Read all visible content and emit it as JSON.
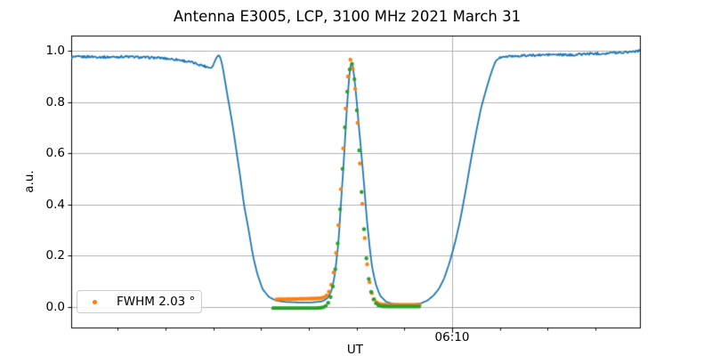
{
  "title": "Antenna E3005, LCP, 3100 MHz 2021 March 31",
  "axes": {
    "x_label": "UT",
    "y_label": "a.u.",
    "x_major_tick_label": "06:10",
    "y_tick_labels": [
      "0.0",
      "0.2",
      "0.4",
      "0.6",
      "0.8",
      "1.0"
    ]
  },
  "legend": {
    "label": "FWHM 2.03 °",
    "marker_color": "#ff7f0e",
    "position": "lower left"
  },
  "colors": {
    "line_blue": "#1f77b4",
    "dots_orange": "#ff7f0e",
    "dots_green": "#2ca02c",
    "grid": "#b0b0b0",
    "spine": "#000000",
    "background": "#ffffff",
    "text": "#000000"
  },
  "chart_data": {
    "type": "line",
    "title": "Antenna E3005, LCP, 3100 MHz 2021 March 31",
    "xlabel": "UT",
    "ylabel": "a.u.",
    "x_axis": {
      "unit": "minutes relative to 06:10 UT",
      "range_min": [
        -7.98,
        3.93
      ],
      "major_tick_labels": [
        "06:10"
      ],
      "major_tick_t": [
        0
      ],
      "minor_tick_interval_min": 1,
      "grid_on_major": true
    },
    "y_axis": {
      "ticks": [
        0.0,
        0.2,
        0.4,
        0.6,
        0.8,
        1.0
      ],
      "range": [
        -0.08,
        1.06
      ],
      "grid": true
    },
    "series": [
      {
        "id": "blue_line",
        "type": "line",
        "color": "#1f77b4",
        "noise_amplitude": 0.0045,
        "points": [
          [
            -7.98,
            0.975
          ],
          [
            -7.6,
            0.977
          ],
          [
            -7.22,
            0.975
          ],
          [
            -6.85,
            0.977
          ],
          [
            -6.48,
            0.974
          ],
          [
            -6.11,
            0.972
          ],
          [
            -5.74,
            0.965
          ],
          [
            -5.46,
            0.955
          ],
          [
            -5.18,
            0.94
          ],
          [
            -5.03,
            0.932
          ],
          [
            -4.94,
            0.972
          ],
          [
            -4.88,
            0.985
          ],
          [
            -4.83,
            0.96
          ],
          [
            -4.77,
            0.9
          ],
          [
            -4.71,
            0.83
          ],
          [
            -4.66,
            0.78
          ],
          [
            -4.58,
            0.69
          ],
          [
            -4.51,
            0.6
          ],
          [
            -4.43,
            0.5
          ],
          [
            -4.36,
            0.4
          ],
          [
            -4.26,
            0.3
          ],
          [
            -4.17,
            0.2
          ],
          [
            -4.08,
            0.13
          ],
          [
            -3.97,
            0.07
          ],
          [
            -3.84,
            0.04
          ],
          [
            -3.69,
            0.025
          ],
          [
            -3.5,
            0.02
          ],
          [
            -3.22,
            0.018
          ],
          [
            -2.94,
            0.018
          ],
          [
            -2.72,
            0.022
          ],
          [
            -2.61,
            0.035
          ],
          [
            -2.53,
            0.06
          ],
          [
            -2.46,
            0.12
          ],
          [
            -2.38,
            0.25
          ],
          [
            -2.33,
            0.4
          ],
          [
            -2.27,
            0.56
          ],
          [
            -2.22,
            0.73
          ],
          [
            -2.16,
            0.89
          ],
          [
            -2.11,
            0.965
          ],
          [
            -2.07,
            0.93
          ],
          [
            -2.01,
            0.83
          ],
          [
            -1.96,
            0.72
          ],
          [
            -1.9,
            0.6
          ],
          [
            -1.84,
            0.47
          ],
          [
            -1.79,
            0.35
          ],
          [
            -1.73,
            0.24
          ],
          [
            -1.68,
            0.16
          ],
          [
            -1.6,
            0.09
          ],
          [
            -1.51,
            0.045
          ],
          [
            -1.38,
            0.02
          ],
          [
            -1.21,
            0.012
          ],
          [
            -0.99,
            0.01
          ],
          [
            -0.8,
            0.01
          ],
          [
            -0.65,
            0.015
          ],
          [
            -0.52,
            0.025
          ],
          [
            -0.39,
            0.045
          ],
          [
            -0.28,
            0.07
          ],
          [
            -0.17,
            0.11
          ],
          [
            -0.06,
            0.17
          ],
          [
            0.06,
            0.25
          ],
          [
            0.17,
            0.34
          ],
          [
            0.28,
            0.45
          ],
          [
            0.39,
            0.57
          ],
          [
            0.5,
            0.68
          ],
          [
            0.61,
            0.78
          ],
          [
            0.73,
            0.86
          ],
          [
            0.82,
            0.915
          ],
          [
            0.91,
            0.96
          ],
          [
            1.02,
            0.975
          ],
          [
            1.15,
            0.977
          ],
          [
            1.34,
            0.98
          ],
          [
            1.71,
            0.982
          ],
          [
            2.09,
            0.985
          ],
          [
            2.46,
            0.983
          ],
          [
            2.83,
            0.988
          ],
          [
            3.2,
            0.99
          ],
          [
            3.58,
            0.994
          ],
          [
            3.93,
            1.0
          ]
        ]
      },
      {
        "id": "orange_dots",
        "type": "scatter",
        "color": "#ff7f0e",
        "marker_radius_px": 2.2,
        "t_start": -3.68,
        "t_end": -0.67,
        "step": 0.05,
        "gaussian_center": -2.11,
        "gaussian_sigma": 0.175,
        "fwhm_deg_label": 2.03,
        "amplitude": 0.935,
        "baseline_left": 0.03,
        "baseline_right": 0.009,
        "baseline_tilt": 0.004
      },
      {
        "id": "green_dots",
        "type": "scatter",
        "color": "#2ca02c",
        "marker_radius_px": 2.2,
        "t_start": -3.745,
        "t_end": -0.67,
        "step": 0.05,
        "gaussian_center": -2.11,
        "gaussian_sigma": 0.175,
        "amplitude": 0.95,
        "baseline_left": -0.004,
        "baseline_right": 0.002,
        "baseline_tilt": 0
      }
    ],
    "legend": {
      "entries": [
        {
          "label": "FWHM 2.03 °",
          "color": "#ff7f0e"
        }
      ],
      "position": "lower left"
    }
  }
}
